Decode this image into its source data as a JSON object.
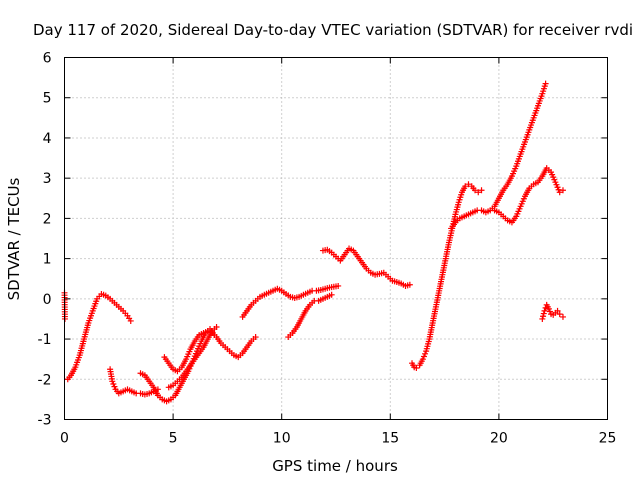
{
  "chart_data": {
    "type": "scatter",
    "title": "Day 117 of 2020, Sidereal Day-to-day VTEC variation (SDTVAR) for receiver rvdi",
    "xlabel": "GPS time / hours",
    "ylabel": "SDTVAR / TECUs",
    "xlim": [
      0,
      25
    ],
    "ylim": [
      -3,
      6
    ],
    "xticks": [
      "0",
      "5",
      "10",
      "15",
      "20",
      "25"
    ],
    "yticks": [
      "-3",
      "-2",
      "-1",
      "0",
      "1",
      "2",
      "3",
      "4",
      "5",
      "6"
    ],
    "grid": true,
    "marker": "+",
    "color": "#ff0000",
    "segments": [
      {
        "x": [
          0.0,
          0.02
        ],
        "y": [
          0.15,
          -0.5
        ]
      },
      {
        "x": [
          0.15,
          0.3,
          0.5,
          0.7,
          0.9,
          1.1,
          1.3,
          1.5,
          1.7,
          1.9,
          2.1,
          2.3,
          2.5,
          2.7,
          2.9,
          3.05
        ],
        "y": [
          -2.0,
          -1.9,
          -1.7,
          -1.4,
          -1.0,
          -0.6,
          -0.3,
          0.0,
          0.12,
          0.08,
          0.0,
          -0.1,
          -0.2,
          -0.3,
          -0.42,
          -0.55
        ]
      },
      {
        "x": [
          2.1,
          2.2,
          2.35,
          2.5,
          2.7,
          2.9,
          3.1,
          3.3,
          3.5,
          3.7,
          3.9,
          4.1,
          4.3
        ],
        "y": [
          -1.75,
          -2.05,
          -2.25,
          -2.35,
          -2.3,
          -2.25,
          -2.3,
          -2.35,
          -2.35,
          -2.38,
          -2.35,
          -2.3,
          -2.25
        ]
      },
      {
        "x": [
          3.5,
          3.7,
          3.9,
          4.1,
          4.3,
          4.5,
          4.7,
          4.9,
          5.1,
          5.3,
          5.5,
          5.7,
          5.9,
          6.1,
          6.3,
          6.5,
          6.7,
          6.9
        ],
        "y": [
          -1.85,
          -1.9,
          -2.05,
          -2.2,
          -2.4,
          -2.5,
          -2.55,
          -2.5,
          -2.4,
          -2.2,
          -2.0,
          -1.8,
          -1.55,
          -1.3,
          -1.05,
          -0.85,
          -0.75,
          -0.9
        ]
      },
      {
        "x": [
          4.6,
          4.8,
          5.0,
          5.2,
          5.4,
          5.6,
          5.8,
          6.0,
          6.2,
          6.4,
          6.6,
          6.8,
          7.0,
          7.2,
          7.4,
          7.6,
          7.8,
          8.0,
          8.2,
          8.4,
          8.6,
          8.8
        ],
        "y": [
          -1.45,
          -1.6,
          -1.75,
          -1.8,
          -1.7,
          -1.5,
          -1.25,
          -1.05,
          -0.9,
          -0.85,
          -0.8,
          -0.85,
          -0.95,
          -1.1,
          -1.2,
          -1.3,
          -1.4,
          -1.45,
          -1.35,
          -1.2,
          -1.05,
          -0.95
        ]
      },
      {
        "x": [
          4.8,
          5.0,
          5.2,
          5.4,
          5.6,
          5.8,
          6.0,
          6.2,
          6.4,
          6.6,
          6.8,
          7.0
        ],
        "y": [
          -2.2,
          -2.15,
          -2.05,
          -1.95,
          -1.8,
          -1.65,
          -1.5,
          -1.35,
          -1.2,
          -1.0,
          -0.8,
          -0.7
        ]
      },
      {
        "x": [
          8.2,
          8.4,
          8.6,
          8.8,
          9.0,
          9.2,
          9.4,
          9.6,
          9.8,
          10.0,
          10.2,
          10.4,
          10.6,
          10.8,
          11.0,
          11.2,
          11.4,
          11.6,
          11.8,
          12.0,
          12.2,
          12.4,
          12.6
        ],
        "y": [
          -0.45,
          -0.3,
          -0.15,
          -0.05,
          0.05,
          0.1,
          0.15,
          0.2,
          0.25,
          0.2,
          0.12,
          0.05,
          0.02,
          0.05,
          0.1,
          0.15,
          0.2,
          0.2,
          0.22,
          0.25,
          0.28,
          0.3,
          0.32
        ]
      },
      {
        "x": [
          10.3,
          10.5,
          10.7,
          10.9,
          11.1,
          11.3,
          11.5,
          11.7,
          11.9,
          12.1,
          12.3
        ],
        "y": [
          -0.95,
          -0.85,
          -0.7,
          -0.5,
          -0.3,
          -0.15,
          -0.05,
          -0.05,
          0.0,
          0.05,
          0.1
        ]
      },
      {
        "x": [
          11.9,
          12.1,
          12.3,
          12.5,
          12.7,
          12.9,
          13.1,
          13.3,
          13.5,
          13.7,
          13.9,
          14.1,
          14.3,
          14.5,
          14.7,
          14.9,
          15.1,
          15.3,
          15.5,
          15.7,
          15.9
        ],
        "y": [
          1.2,
          1.22,
          1.15,
          1.05,
          0.95,
          1.1,
          1.25,
          1.2,
          1.05,
          0.9,
          0.75,
          0.65,
          0.6,
          0.62,
          0.65,
          0.55,
          0.45,
          0.42,
          0.38,
          0.32,
          0.35
        ]
      },
      {
        "x": [
          16.0,
          16.1,
          16.2,
          16.35,
          16.5,
          16.65,
          16.8,
          16.95,
          17.1,
          17.25,
          17.4,
          17.55,
          17.7,
          17.85,
          18.0,
          18.15,
          18.3,
          18.45,
          18.6,
          18.75,
          18.9,
          19.05,
          19.2
        ],
        "y": [
          -1.6,
          -1.7,
          -1.72,
          -1.65,
          -1.5,
          -1.3,
          -1.0,
          -0.6,
          -0.2,
          0.2,
          0.6,
          1.0,
          1.4,
          1.75,
          2.1,
          2.4,
          2.65,
          2.8,
          2.85,
          2.8,
          2.7,
          2.65,
          2.7
        ]
      },
      {
        "x": [
          17.8,
          18.0,
          18.2,
          18.4,
          18.6,
          18.8,
          19.0,
          19.2,
          19.4,
          19.6,
          19.8,
          20.0,
          20.2,
          20.4,
          20.6,
          20.8,
          21.0,
          21.2,
          21.4,
          21.6,
          21.8,
          22.0,
          22.15
        ],
        "y": [
          1.75,
          1.9,
          2.0,
          2.05,
          2.1,
          2.15,
          2.2,
          2.2,
          2.15,
          2.2,
          2.3,
          2.5,
          2.7,
          2.85,
          3.05,
          3.3,
          3.6,
          3.9,
          4.2,
          4.5,
          4.8,
          5.1,
          5.35
        ]
      },
      {
        "x": [
          19.8,
          20.0,
          20.2,
          20.4,
          20.6,
          20.8,
          21.0,
          21.2,
          21.4,
          21.6,
          21.8,
          22.0,
          22.2,
          22.4,
          22.6,
          22.8,
          22.95
        ],
        "y": [
          2.2,
          2.15,
          2.05,
          1.95,
          1.9,
          2.05,
          2.3,
          2.55,
          2.75,
          2.85,
          2.9,
          3.05,
          3.25,
          3.15,
          2.9,
          2.65,
          2.7
        ]
      },
      {
        "x": [
          22.0,
          22.1,
          22.2,
          22.3,
          22.4,
          22.5,
          22.6,
          22.7,
          22.8,
          22.95
        ],
        "y": [
          -0.5,
          -0.3,
          -0.15,
          -0.25,
          -0.38,
          -0.4,
          -0.35,
          -0.3,
          -0.38,
          -0.45
        ]
      }
    ]
  }
}
